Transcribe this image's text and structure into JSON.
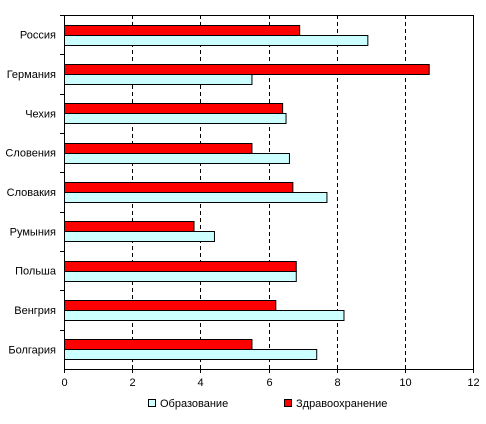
{
  "chart_data": {
    "type": "bar",
    "orientation": "horizontal",
    "categories": [
      "Россия",
      "Германия",
      "Чехия",
      "Словения",
      "Словакия",
      "Румыния",
      "Польша",
      "Венгрия",
      "Болгария"
    ],
    "series": [
      {
        "name": "Здравоохранение",
        "color": "#ff0000",
        "values": [
          6.9,
          10.7,
          6.4,
          5.5,
          6.7,
          3.8,
          6.8,
          6.2,
          5.5
        ]
      },
      {
        "name": "Образование",
        "color": "#ccffff",
        "values": [
          8.9,
          5.5,
          6.5,
          6.6,
          7.7,
          4.4,
          6.8,
          8.2,
          7.4
        ]
      }
    ],
    "xlim": [
      0,
      12
    ],
    "xticks": [
      0,
      2,
      4,
      6,
      8,
      10,
      12
    ],
    "gridlines": "vertical dashed",
    "legend_position": "bottom",
    "legend_order": [
      "Образование",
      "Здравоохранение"
    ]
  }
}
